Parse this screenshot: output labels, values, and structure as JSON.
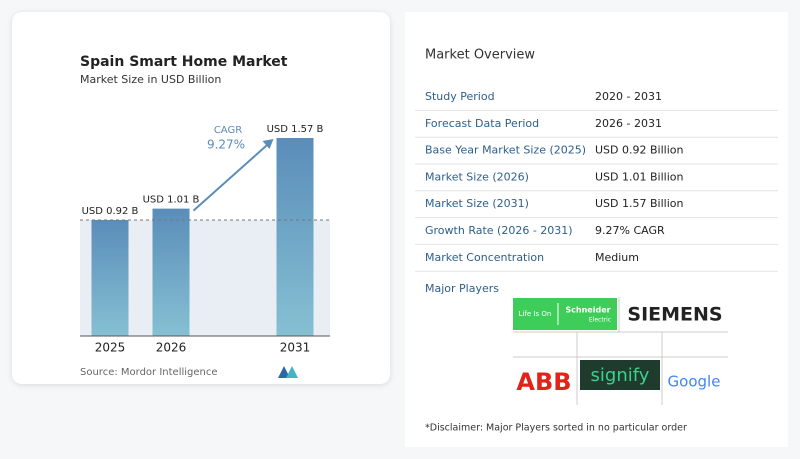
{
  "chart_data": {
    "type": "bar",
    "title": "Spain Smart Home Market",
    "subtitle": "Market Size in USD Billion",
    "categories": [
      "2025",
      "2026",
      "2031"
    ],
    "values": [
      0.92,
      1.01,
      1.57
    ],
    "value_labels": [
      "USD 0.92 B",
      "USD 1.01 B",
      "USD 1.57 B"
    ],
    "annotations": [
      "CAGR",
      "9.27%"
    ],
    "source": "Source: Mordor Intelligence"
  },
  "overview": {
    "title": "Market Overview",
    "rows": [
      [
        "Study Period",
        "2020 - 2031"
      ],
      [
        "Forecast Data Period",
        "2026 - 2031"
      ],
      [
        "Base Year Market Size (2025)",
        "USD 0.92 Billion"
      ],
      [
        "Market Size (2026)",
        "USD 1.01 Billion"
      ],
      [
        "Market Size (2031)",
        "USD 1.57 Billion"
      ],
      [
        "Growth Rate (2026 - 2031)",
        "9.27% CAGR"
      ],
      [
        "Market Concentration",
        "Medium"
      ]
    ]
  },
  "major_players": {
    "title": "Major Players",
    "logos": [
      [
        "Life Is On",
        "Schneider",
        "Electric"
      ],
      [
        "SIEMENS"
      ],
      [
        "ABB"
      ],
      [
        "signify"
      ],
      [
        "Google"
      ]
    ]
  },
  "disclaimer": "*Disclaimer: Major Players sorted in no particular order"
}
